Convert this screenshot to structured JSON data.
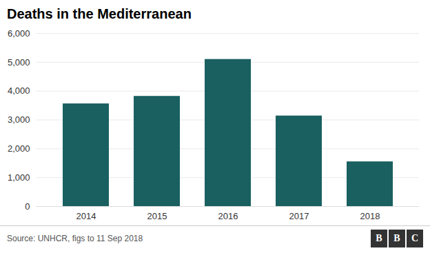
{
  "chart_data": {
    "type": "bar",
    "title": "Deaths in the Mediterranean",
    "categories": [
      "2014",
      "2015",
      "2016",
      "2017",
      "2018"
    ],
    "values": [
      3560,
      3820,
      5100,
      3140,
      1550
    ],
    "color": "#1a6060",
    "ylim": [
      0,
      6000
    ],
    "yticks": [
      0,
      {
        "value": 1000,
        "label": "1,000"
      },
      {
        "value": 2000,
        "label": "2,000"
      },
      {
        "value": 3000,
        "label": "3,000"
      },
      {
        "value": 4000,
        "label": "4,000"
      },
      {
        "value": 5000,
        "label": "5,000"
      },
      {
        "value": 6000,
        "label": "6,000"
      }
    ],
    "grid": true,
    "caption": "Source: UNHCR, figs to 11 Sep 2018",
    "annotations": [
      "BBC"
    ]
  }
}
